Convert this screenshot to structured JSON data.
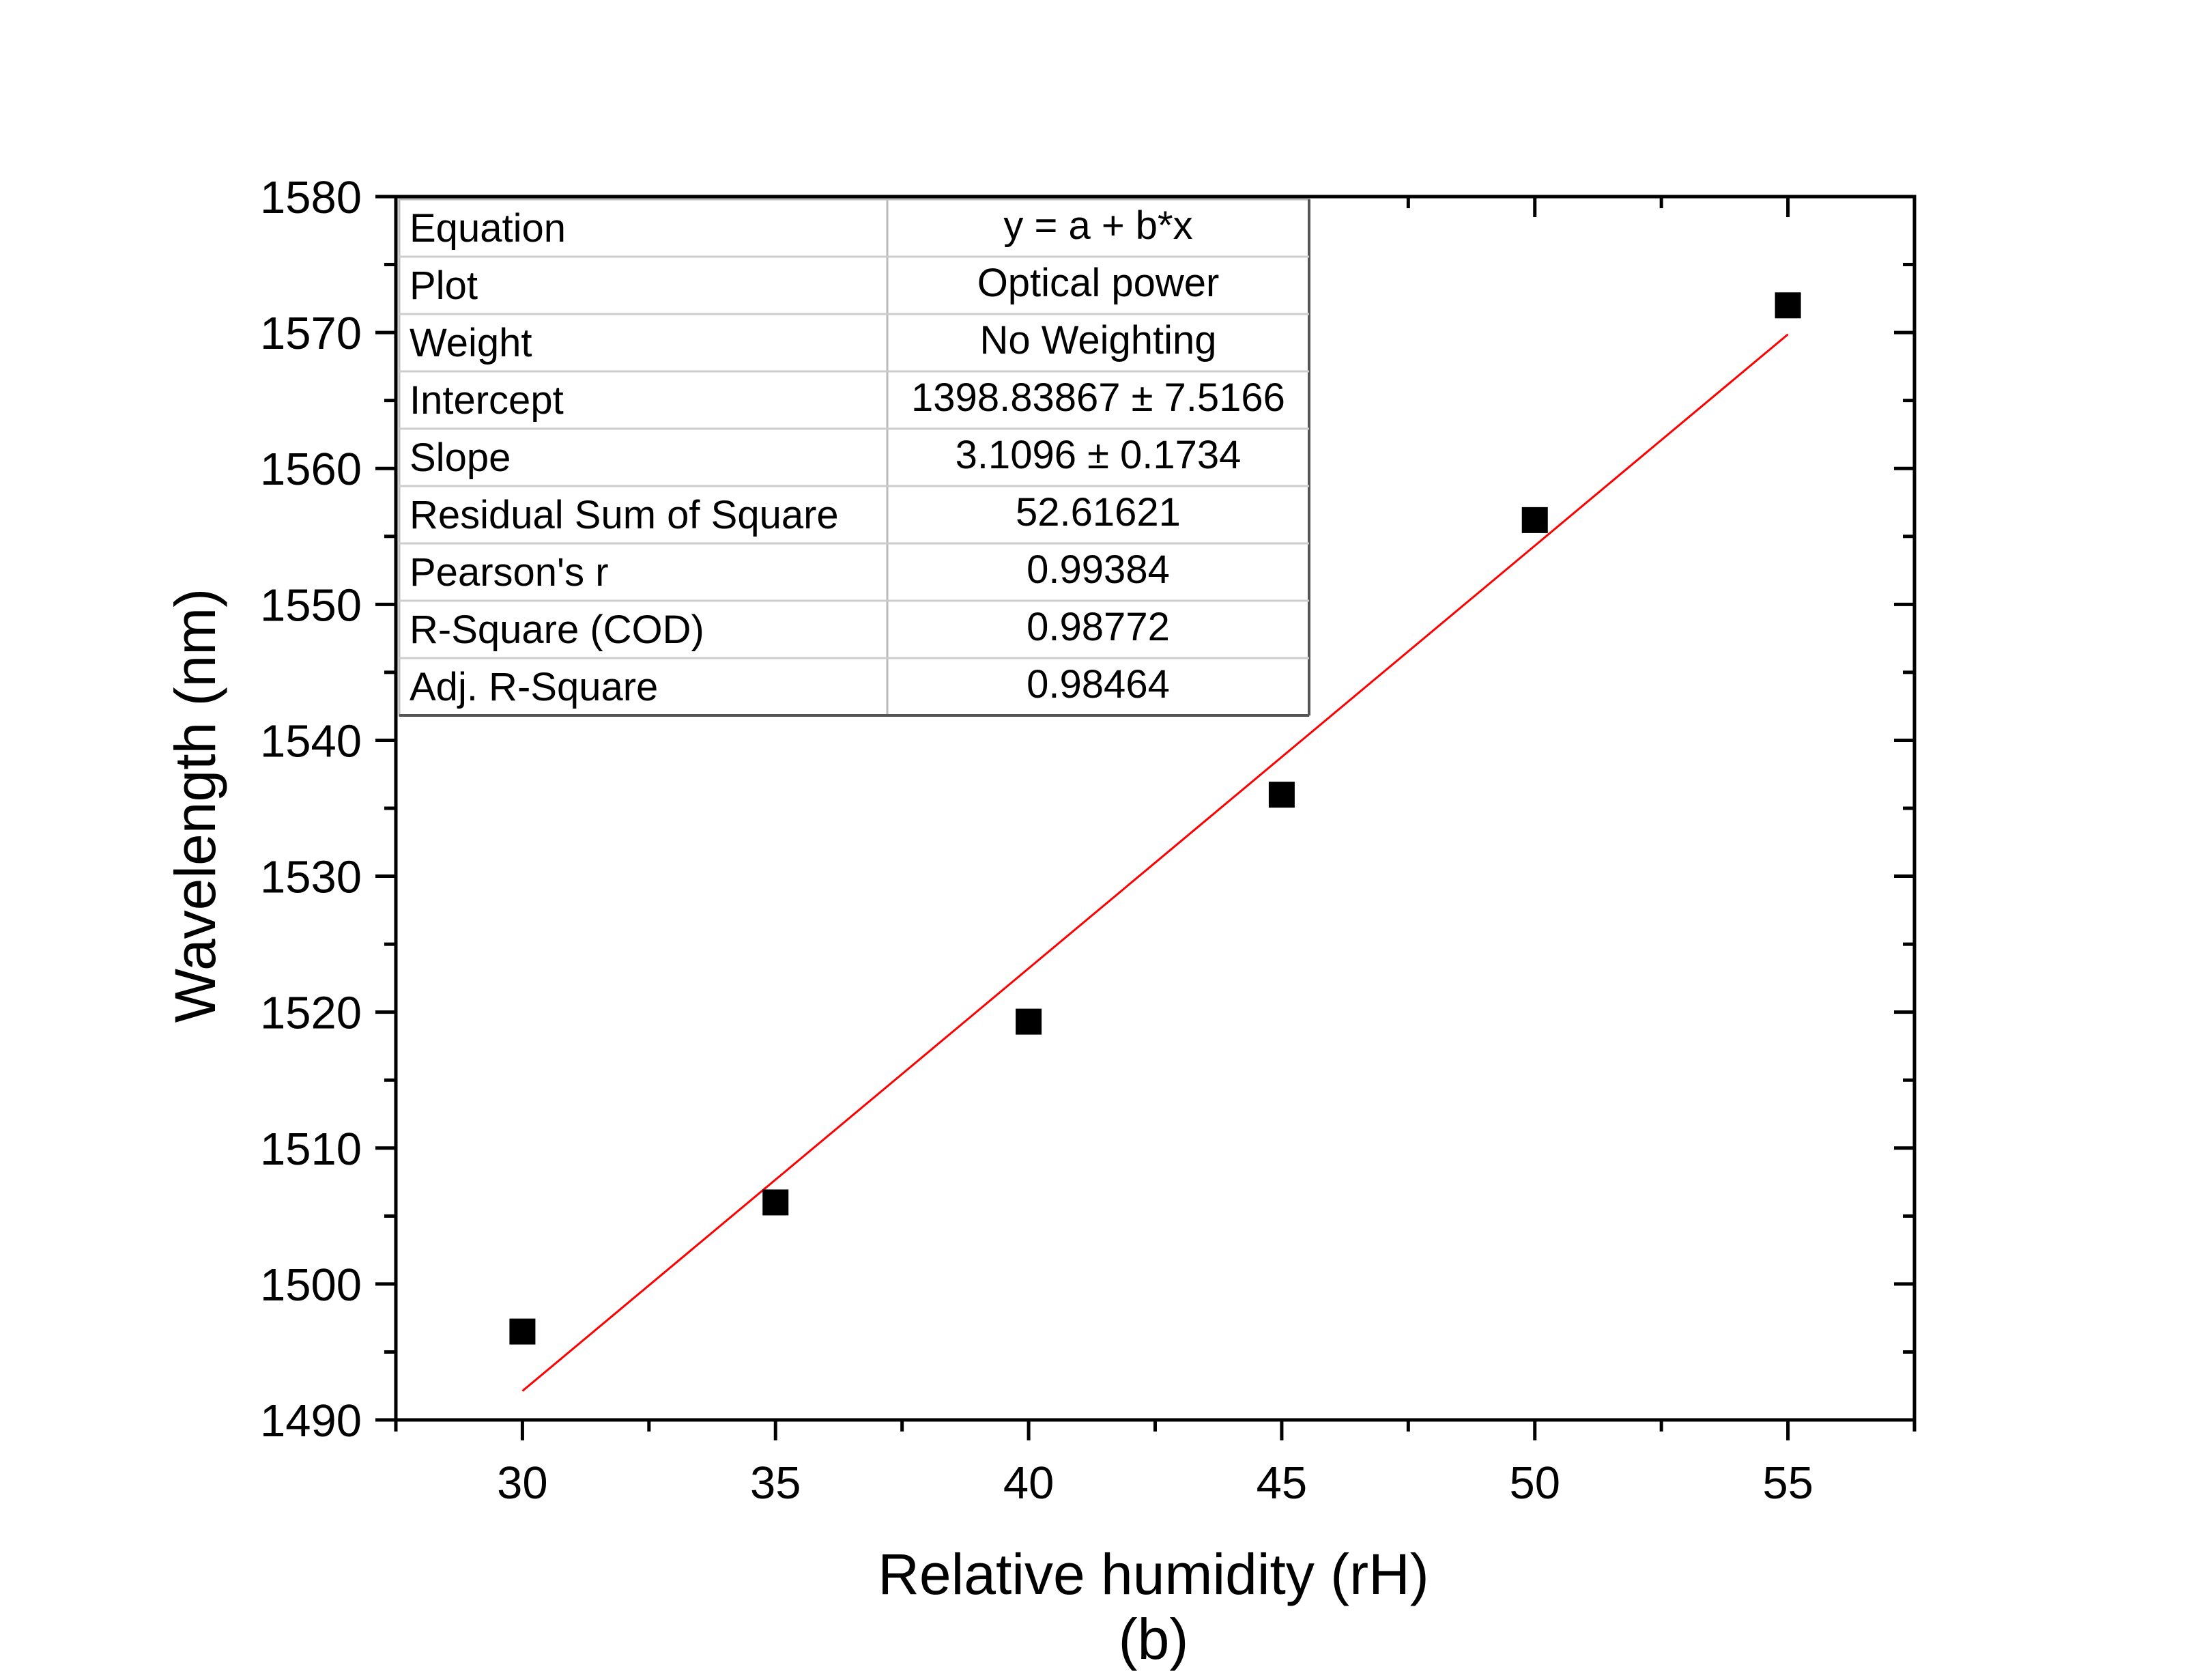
{
  "chart_data": {
    "type": "scatter",
    "xlabel": "Relative humidity (rH)",
    "ylabel": "Wavelength (nm)",
    "caption": "(b)",
    "xlim": [
      27.5,
      57.5
    ],
    "ylim": [
      1490,
      1580
    ],
    "xticks": [
      "30",
      "35",
      "40",
      "45",
      "50",
      "55"
    ],
    "yticks": [
      "1490",
      "1500",
      "1510",
      "1520",
      "1530",
      "1540",
      "1550",
      "1560",
      "1570",
      "1580"
    ],
    "grid": false,
    "series": [
      {
        "marker": "square",
        "color": "#000000",
        "points": [
          {
            "x": 30,
            "y": 1496.5
          },
          {
            "x": 35,
            "y": 1506.0
          },
          {
            "x": 40,
            "y": 1519.3
          },
          {
            "x": 45,
            "y": 1536.0
          },
          {
            "x": 50,
            "y": 1556.2
          },
          {
            "x": 55,
            "y": 1572.0
          }
        ]
      }
    ],
    "fit_line": {
      "color": "#ff0000",
      "intercept": 1398.83867,
      "slope": 3.1096,
      "x_range": [
        30,
        55
      ]
    },
    "fit_table": {
      "position": "top-left",
      "rows": [
        {
          "label": "Equation",
          "value": "y = a + b*x"
        },
        {
          "label": "Plot",
          "value": "Optical power"
        },
        {
          "label": "Weight",
          "value": "No Weighting"
        },
        {
          "label": "Intercept",
          "value": "1398.83867 ± 7.5166"
        },
        {
          "label": "Slope",
          "value": "3.1096 ± 0.1734"
        },
        {
          "label": "Residual Sum of Square",
          "value": "52.61621"
        },
        {
          "label": "Pearson's r",
          "value": "0.99384"
        },
        {
          "label": "R-Square (COD)",
          "value": "0.98772"
        },
        {
          "label": "Adj. R-Square",
          "value": "0.98464"
        }
      ]
    }
  }
}
